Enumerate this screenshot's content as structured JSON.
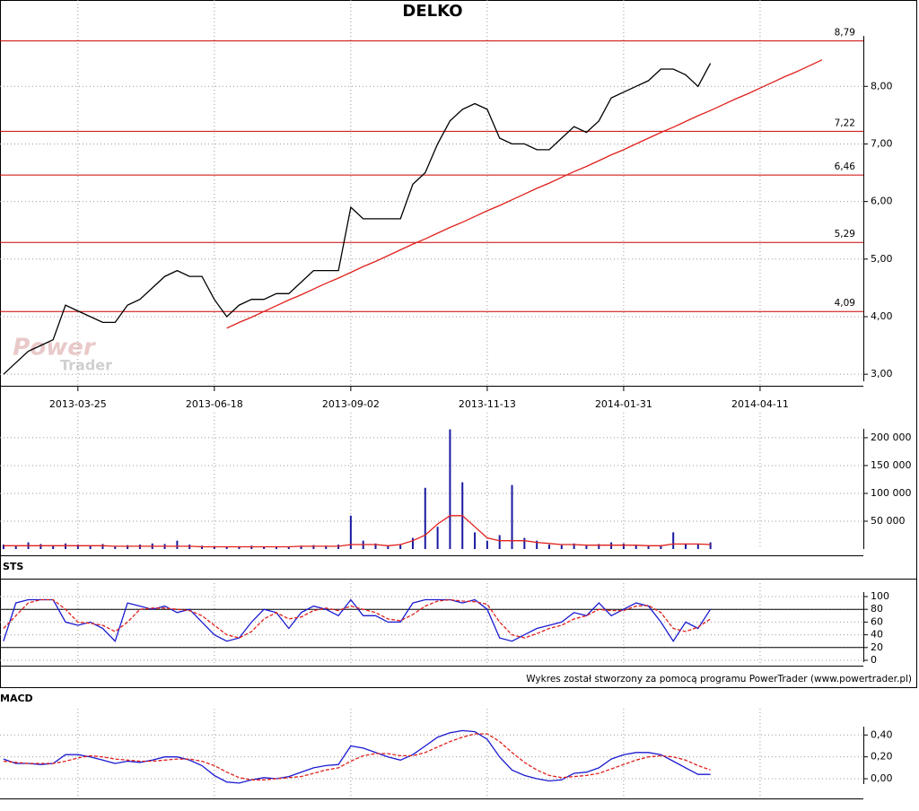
{
  "chart_data": [
    {
      "type": "line",
      "title": "DELKO",
      "watermark": [
        "Power",
        "Trader"
      ],
      "categories": [
        null,
        null,
        null,
        null,
        null,
        null,
        "2013-03-25",
        null,
        null,
        null,
        null,
        null,
        null,
        null,
        null,
        null,
        null,
        "2013-06-18",
        null,
        null,
        null,
        null,
        null,
        null,
        null,
        null,
        null,
        null,
        "2013-09-02",
        null,
        null,
        null,
        null,
        null,
        null,
        null,
        null,
        null,
        null,
        "2013-11-13",
        null,
        null,
        null,
        null,
        null,
        null,
        null,
        null,
        null,
        null,
        "2014-01-31",
        null,
        null,
        null,
        null,
        null,
        null,
        null,
        null,
        null,
        null,
        "2014-04-11",
        null,
        null,
        null,
        null,
        null,
        null,
        null,
        null
      ],
      "series": [
        {
          "color": "#000000",
          "values": [
            3.0,
            3.2,
            3.4,
            3.5,
            3.6,
            4.2,
            4.1,
            4.0,
            3.9,
            3.9,
            4.2,
            4.3,
            4.5,
            4.7,
            4.8,
            4.7,
            4.7,
            4.3,
            4.0,
            4.2,
            4.3,
            4.3,
            4.4,
            4.4,
            4.6,
            4.8,
            4.8,
            4.8,
            5.9,
            5.7,
            5.7,
            5.7,
            5.7,
            6.3,
            6.5,
            7.0,
            7.4,
            7.6,
            7.7,
            7.6,
            7.1,
            7.0,
            7.0,
            6.9,
            6.9,
            7.1,
            7.3,
            7.2,
            7.4,
            7.8,
            7.9,
            8.0,
            8.1,
            8.3,
            8.3,
            8.2,
            8.0,
            8.4,
            null,
            null,
            null,
            null,
            null,
            null,
            null,
            null,
            null,
            null,
            null,
            null
          ]
        },
        {
          "color": "#e0201b",
          "values": [
            null,
            null,
            null,
            null,
            null,
            null,
            null,
            null,
            null,
            null,
            null,
            null,
            null,
            null,
            null,
            null,
            null,
            null,
            3.8,
            3.9,
            3.99,
            4.09,
            4.19,
            4.29,
            4.38,
            4.48,
            4.58,
            4.67,
            4.77,
            4.87,
            4.96,
            5.06,
            5.16,
            5.26,
            5.35,
            5.45,
            5.55,
            5.64,
            5.74,
            5.84,
            5.93,
            6.03,
            6.13,
            6.23,
            6.32,
            6.42,
            6.52,
            6.61,
            6.71,
            6.81,
            6.9,
            7.0,
            7.1,
            7.2,
            7.29,
            7.39,
            7.49,
            7.58,
            7.68,
            7.78,
            7.87,
            7.97,
            8.07,
            8.17,
            8.26,
            8.36,
            8.46,
            null,
            null,
            null
          ]
        }
      ],
      "levels": [
        {
          "value": 8.79,
          "label": "8,79"
        },
        {
          "value": 7.22,
          "label": "7,22"
        },
        {
          "value": 6.46,
          "label": "6,46"
        },
        {
          "value": 5.29,
          "label": "5,29"
        },
        {
          "value": 4.09,
          "label": "4,09"
        }
      ],
      "level_color": "#cc0000",
      "ylim": [
        2.8,
        9.5
      ],
      "yticks": [
        {
          "value": 3,
          "label": "3,00"
        },
        {
          "value": 4,
          "label": "4,00"
        },
        {
          "value": 5,
          "label": "5,00"
        },
        {
          "value": 6,
          "label": "6,00"
        },
        {
          "value": 7,
          "label": "7,00"
        },
        {
          "value": 8,
          "label": "8,00"
        }
      ],
      "grid": true
    },
    {
      "type": "bar",
      "series": [
        {
          "type": "bar",
          "color": "#1a1aa0",
          "values": [
            8000,
            6000,
            12000,
            9000,
            7000,
            10000,
            8000,
            6000,
            9000,
            5000,
            7000,
            8000,
            10000,
            9000,
            15000,
            8000,
            6000,
            5000,
            4000,
            5000,
            6000,
            4000,
            5000,
            4000,
            6000,
            7000,
            6000,
            8000,
            60000,
            15000,
            10000,
            6000,
            8000,
            20000,
            110000,
            40000,
            215000,
            120000,
            30000,
            15000,
            25000,
            115000,
            20000,
            15000,
            8000,
            7000,
            10000,
            6000,
            9000,
            12000,
            10000,
            8000,
            6000,
            7000,
            30000,
            10000,
            8000,
            12000,
            null,
            null,
            null,
            null,
            null,
            null,
            null,
            null,
            null,
            null,
            null,
            null
          ]
        },
        {
          "type": "line",
          "color": "#e0201b",
          "values": [
            6000,
            6000,
            6000,
            6000,
            6000,
            6000,
            6000,
            6000,
            6000,
            5000,
            5000,
            5000,
            5000,
            5000,
            5000,
            5000,
            4000,
            4000,
            4000,
            4000,
            4000,
            4000,
            4000,
            4000,
            5000,
            5000,
            5000,
            5000,
            8000,
            8000,
            8000,
            6000,
            8000,
            15000,
            25000,
            45000,
            60000,
            60000,
            40000,
            20000,
            15000,
            15000,
            15000,
            12000,
            10000,
            8000,
            8000,
            7000,
            7000,
            7000,
            7000,
            7000,
            6000,
            6000,
            9000,
            9000,
            9000,
            8000,
            null,
            null,
            null,
            null,
            null,
            null,
            null,
            null,
            null,
            null,
            null,
            null
          ]
        }
      ],
      "ylim": [
        0,
        245000
      ],
      "yticks": [
        {
          "value": 50000,
          "label": "50 000"
        },
        {
          "value": 100000,
          "label": "100 000"
        },
        {
          "value": 150000,
          "label": "150 000"
        },
        {
          "value": 200000,
          "label": "200 000"
        }
      ],
      "grid": true
    },
    {
      "type": "line",
      "title": "STS",
      "series": [
        {
          "color": "#1a1ad0",
          "values": [
            30,
            90,
            95,
            95,
            95,
            60,
            55,
            60,
            50,
            30,
            90,
            85,
            80,
            85,
            75,
            80,
            60,
            40,
            30,
            35,
            60,
            80,
            75,
            50,
            75,
            85,
            80,
            70,
            95,
            70,
            70,
            60,
            60,
            90,
            95,
            95,
            95,
            90,
            95,
            80,
            35,
            30,
            40,
            50,
            55,
            60,
            75,
            70,
            90,
            70,
            80,
            90,
            85,
            60,
            30,
            60,
            50,
            80,
            null,
            null,
            null,
            null,
            null,
            null,
            null,
            null,
            null,
            null,
            null,
            null
          ]
        },
        {
          "color": "#e0201b",
          "dashed": true,
          "values": [
            50,
            70,
            90,
            95,
            95,
            80,
            60,
            58,
            55,
            45,
            60,
            80,
            82,
            82,
            80,
            78,
            70,
            55,
            40,
            35,
            45,
            65,
            75,
            65,
            68,
            78,
            82,
            78,
            85,
            80,
            75,
            65,
            62,
            72,
            85,
            93,
            95,
            93,
            92,
            88,
            60,
            40,
            35,
            42,
            50,
            55,
            65,
            70,
            80,
            78,
            78,
            85,
            86,
            75,
            50,
            45,
            52,
            65,
            null,
            null,
            null,
            null,
            null,
            null,
            null,
            null,
            null,
            null,
            null,
            null
          ]
        }
      ],
      "levels": [
        80,
        20
      ],
      "ylim": [
        0,
        100
      ],
      "yticks": [
        0,
        20,
        40,
        60,
        80,
        100
      ],
      "grid": true
    },
    {
      "type": "line",
      "title": "MACD",
      "series": [
        {
          "color": "#1a1ad0",
          "values": [
            0.18,
            0.14,
            0.14,
            0.13,
            0.14,
            0.22,
            0.22,
            0.2,
            0.17,
            0.14,
            0.16,
            0.15,
            0.17,
            0.2,
            0.2,
            0.17,
            0.12,
            0.03,
            -0.03,
            -0.04,
            -0.01,
            0.01,
            0.0,
            0.02,
            0.06,
            0.1,
            0.12,
            0.13,
            0.3,
            0.28,
            0.24,
            0.2,
            0.17,
            0.22,
            0.3,
            0.38,
            0.42,
            0.44,
            0.43,
            0.36,
            0.2,
            0.08,
            0.03,
            0.0,
            -0.02,
            -0.01,
            0.05,
            0.06,
            0.1,
            0.18,
            0.22,
            0.24,
            0.24,
            0.22,
            0.16,
            0.1,
            0.04,
            0.04,
            null,
            null,
            null,
            null,
            null,
            null,
            null,
            null,
            null,
            null,
            null,
            null
          ]
        },
        {
          "color": "#e0201b",
          "dashed": true,
          "values": [
            0.16,
            0.15,
            0.14,
            0.14,
            0.14,
            0.16,
            0.19,
            0.21,
            0.2,
            0.18,
            0.17,
            0.16,
            0.16,
            0.17,
            0.18,
            0.18,
            0.16,
            0.12,
            0.06,
            0.01,
            -0.01,
            -0.01,
            0.0,
            0.01,
            0.02,
            0.05,
            0.08,
            0.1,
            0.16,
            0.21,
            0.23,
            0.23,
            0.21,
            0.21,
            0.24,
            0.29,
            0.34,
            0.38,
            0.41,
            0.41,
            0.34,
            0.24,
            0.15,
            0.08,
            0.03,
            0.01,
            0.02,
            0.03,
            0.05,
            0.09,
            0.13,
            0.17,
            0.2,
            0.21,
            0.2,
            0.17,
            0.12,
            0.08,
            null,
            null,
            null,
            null,
            null,
            null,
            null,
            null,
            null,
            null,
            null,
            null
          ]
        }
      ],
      "ylim": [
        -0.18,
        0.64
      ],
      "yticks": [
        {
          "value": 0,
          "label": "0,00"
        },
        {
          "value": 0.2,
          "label": "0,20"
        },
        {
          "value": 0.4,
          "label": "0,40"
        }
      ],
      "grid": true
    }
  ],
  "footer": "Wykres został stworzony za pomocą programu PowerTrader (www.powertrader.pl)"
}
